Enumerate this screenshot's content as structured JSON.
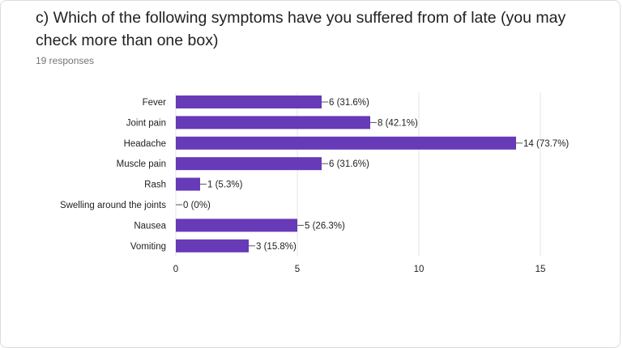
{
  "question": {
    "title": "c) Which of the following symptoms have you suffered from of late (you may check more than one box)",
    "responses": "19 responses"
  },
  "colors": {
    "bar": "#673ab7",
    "grid": "#e6e6e6",
    "text": "#222222"
  },
  "chart_data": {
    "type": "bar",
    "orientation": "horizontal",
    "categories": [
      "Fever",
      "Joint pain",
      "Headache",
      "Muscle pain",
      "Rash",
      "Swelling around the joints",
      "Nausea",
      "Vomiting"
    ],
    "values": [
      6,
      8,
      14,
      6,
      1,
      0,
      5,
      3
    ],
    "data_labels": [
      "6 (31.6%)",
      "8 (42.1%)",
      "14 (73.7%)",
      "6 (31.6%)",
      "1 (5.3%)",
      "0 (0%)",
      "5 (26.3%)",
      "3 (15.8%)"
    ],
    "xlim": [
      0,
      15
    ],
    "x_ticks": [
      0,
      5,
      10,
      15
    ],
    "grid": true,
    "legend": "none"
  }
}
